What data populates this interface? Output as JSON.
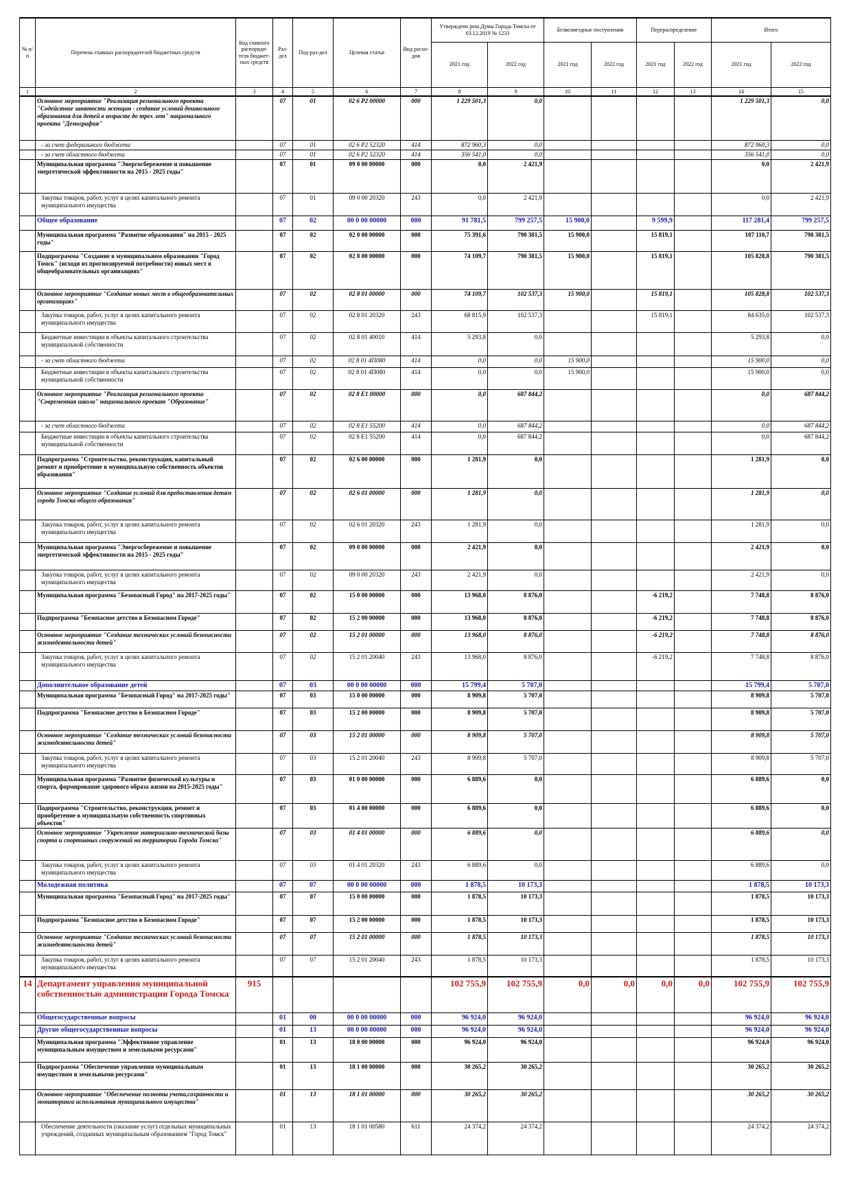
{
  "header": {
    "cells": [
      "№ п/п",
      "Перечень главных распорядителей бюджетных средств",
      "Код главного распоряди-теля бюджет-ных средств",
      "Раз-дел",
      "Под-раз-дел",
      "Целевая статья",
      "Вид расхо-дов",
      "Утверждено реш.Думы Города Томска от 03.12.2019 № 1233",
      "Безвозмездные поступления",
      "Перераспределение",
      "Итого"
    ],
    "years": [
      "2021 год",
      "2022 год",
      "2021 год",
      "2022 год",
      "2021 год",
      "2022 год",
      "2021 год",
      "2022 год"
    ],
    "numbers": [
      1,
      2,
      3,
      4,
      5,
      6,
      7,
      8,
      9,
      10,
      11,
      12,
      13,
      14,
      15
    ]
  },
  "rows": [
    {
      "style": "bi",
      "cells": [
        null,
        "Основное мероприятие \"Реализация регионального проекта \"Содействие занятости женщин - создание условий дошкольного образования для детей в возрасте до трех лет\" национального проекта \"Демография\"",
        null,
        "07",
        "01",
        "02 6 P2 00000",
        "000",
        "1 229 501,3",
        "0,0",
        null,
        null,
        null,
        null,
        "1 229 501,3",
        "0,0"
      ]
    },
    {
      "style": "i",
      "cells": [
        null,
        "- за счет федерального бюджета",
        null,
        "07",
        "01",
        "02 6 P2 52320",
        "414",
        "872 960,3",
        "0,0",
        null,
        null,
        null,
        null,
        "872 960,3",
        "0,0"
      ]
    },
    {
      "style": "i",
      "cells": [
        null,
        "- за счет областного бюджета",
        null,
        "07",
        "01",
        "02 6 P2 52320",
        "414",
        "356 541,0",
        "0,0",
        null,
        null,
        null,
        null,
        "356 541,0",
        "0,0"
      ]
    },
    {
      "style": "b",
      "cells": [
        null,
        "Муниципальная программа \"Энергосбережение и повышение энергетической эффективности на 2015 - 2025 годы\"",
        null,
        "07",
        "01",
        "09 0 00 00000",
        "000",
        "0,0",
        "2 421,9",
        null,
        null,
        null,
        null,
        "0,0",
        "2 421,9"
      ]
    },
    {
      "style": "n",
      "cells": [
        null,
        "Закупка товаров, работ, услуг в целях капитального ремонта муниципального имущества",
        null,
        "07",
        "01",
        "09 0 00 20320",
        "243",
        "0,0",
        "2 421,9",
        null,
        null,
        null,
        null,
        "0,0",
        "2 421,9"
      ]
    },
    {
      "style": "blue",
      "cells": [
        null,
        "Общее образование",
        null,
        "07",
        "02",
        "00 0 00 00000",
        "000",
        "91 781,5",
        "799 257,5",
        "15 900,0",
        null,
        "9 599,9",
        null,
        "117 281,4",
        "799 257,5"
      ]
    },
    {
      "style": "b",
      "cells": [
        null,
        "Муниципальная программа \"Развитие образования\" на 2015 - 2025 годы\"",
        null,
        "07",
        "02",
        "02 0 00 00000",
        "000",
        "75 391,6",
        "790 381,5",
        "15 900,0",
        null,
        "15 819,1",
        null,
        "107 110,7",
        "790 381,5"
      ]
    },
    {
      "style": "b",
      "cells": [
        null,
        "Подпрограмма \"Создание в муниципальном образовании \"Город Томск\" (исходя из прогнозируемой потребности) новых мест в общеобразовательных организациях\"",
        null,
        "07",
        "02",
        "02 8 00 00000",
        "000",
        "74 109,7",
        "790 381,5",
        "15 900,0",
        null,
        "15 819,1",
        null,
        "105 828,8",
        "790 381,5"
      ]
    },
    {
      "style": "bi",
      "cells": [
        null,
        "Основное мероприятие \"Создание новых мест в общеобразовательных организациях\"",
        null,
        "07",
        "02",
        "02 8 01 00000",
        "000",
        "74 109,7",
        "102 537,3",
        "15 900,0",
        null,
        "15 819,1",
        null,
        "105 828,8",
        "102 537,3"
      ]
    },
    {
      "style": "n",
      "cells": [
        null,
        "Закупка товаров, работ, услуг в целях капитального ремонта муниципального имущества",
        null,
        "07",
        "02",
        "02 8 01 20320",
        "243",
        "68 815,9",
        "102 537,3",
        null,
        null,
        "15 819,1",
        null,
        "84 635,0",
        "102 537,3"
      ]
    },
    {
      "style": "n",
      "cells": [
        null,
        "Бюджетные инвестиции в объекты капитального строительства муниципальной собственности",
        null,
        "07",
        "02",
        "02 8 01 40010",
        "414",
        "5 293,8",
        "0,0",
        null,
        null,
        null,
        null,
        "5 293,8",
        "0,0"
      ]
    },
    {
      "style": "i",
      "cells": [
        null,
        "- за счет областного бюджета",
        null,
        "07",
        "02",
        "02 8 01 4П080",
        "414",
        "0,0",
        "0,0",
        "15 900,0",
        null,
        null,
        null,
        "15 900,0",
        "0,0"
      ]
    },
    {
      "style": "n",
      "cells": [
        null,
        "Бюджетные инвестиции в объекты капитального строительства муниципальной собственности",
        null,
        "07",
        "02",
        "02 8 01 4П080",
        "414",
        "0,0",
        "0,0",
        "15 900,0",
        null,
        null,
        null,
        "15 900,0",
        "0,0"
      ]
    },
    {
      "style": "bi",
      "cells": [
        null,
        "Основное мероприятие \"Реализация регионального проекта \"Современная школа\" национального проекат \"Образование\"",
        null,
        "07",
        "02",
        "02 8 E1 00000",
        "000",
        "0,0",
        "687 844,2",
        null,
        null,
        null,
        null,
        "0,0",
        "687 844,2"
      ]
    },
    {
      "style": "i",
      "cells": [
        null,
        "- за счет областного бюджета",
        null,
        "07",
        "02",
        "02 8 E1 55200",
        "414",
        "0,0",
        "687 844,2",
        null,
        null,
        null,
        null,
        "0,0",
        "687 844,2"
      ]
    },
    {
      "style": "n",
      "cells": [
        null,
        "Бюджетные инвестиции в объекты капитального строительства муниципальной собственности",
        null,
        "07",
        "02",
        "02 8 E1 55200",
        "414",
        "0,0",
        "687 844,2",
        null,
        null,
        null,
        null,
        "0,0",
        "687 844,2"
      ]
    },
    {
      "style": "b",
      "cells": [
        null,
        "Подпрограмма \"Строительство, реконструкция, капитальный ремонт и приобретение в муниципальную собственность объектов образования\"",
        null,
        "07",
        "02",
        "02 6 00 00000",
        "000",
        "1 281,9",
        "0,0",
        null,
        null,
        null,
        null,
        "1 281,9",
        "0,0"
      ]
    },
    {
      "style": "bi",
      "cells": [
        null,
        "Основное мероприятие \"Создание условий для предоставления детям города Томска общего образования\"",
        null,
        "07",
        "02",
        "02 6 01 00000",
        "000",
        "1 281,9",
        "0,0",
        null,
        null,
        null,
        null,
        "1 281,9",
        "0,0"
      ]
    },
    {
      "style": "n",
      "cells": [
        null,
        "Закупка товаров, работ, услуг в целях капитального ремонта муниципального имущества",
        null,
        "07",
        "02",
        "02 6 01 20320",
        "243",
        "1 281,9",
        "0,0",
        null,
        null,
        null,
        null,
        "1 281,9",
        "0,0"
      ]
    },
    {
      "style": "b",
      "cells": [
        null,
        "Муниципальная программа \"Энергосбережение и повышение энергетической эффективности на 2015 - 2025 годы\"",
        null,
        "07",
        "02",
        "09 0 00 00000",
        "000",
        "2 421,9",
        "0,0",
        null,
        null,
        null,
        null,
        "2 421,9",
        "0,0"
      ]
    },
    {
      "style": "n",
      "cells": [
        null,
        "Закупка товаров, работ, услуг в целях капитального ремонта муниципального имущества",
        null,
        "07",
        "02",
        "09 0 00 20320",
        "243",
        "2 421,9",
        "0,0",
        null,
        null,
        null,
        null,
        "2 421,9",
        "0,0"
      ]
    },
    {
      "style": "b",
      "cells": [
        null,
        "Муниципальная программа \"Безопасный Город\" на 2017-2025 годы\"",
        null,
        "07",
        "02",
        "15 0 00 00000",
        "000",
        "13 968,0",
        "8 876,0",
        null,
        null,
        "-6 219,2",
        null,
        "7 748,8",
        "8 876,0"
      ]
    },
    {
      "style": "b",
      "cells": [
        null,
        "Подпрограмма \"Безопасное детство в Безопасном Городе\"",
        null,
        "07",
        "02",
        "15 2 00 00000",
        "000",
        "13 968,0",
        "8 876,0",
        null,
        null,
        "-6 219,2",
        null,
        "7 748,8",
        "8 876,0"
      ]
    },
    {
      "style": "bi",
      "cells": [
        null,
        "Основное мероприятие \"Создание технических условий безопасности жизнедеятельности детей\"",
        null,
        "07",
        "02",
        "15 2 01 00000",
        "000",
        "13 968,0",
        "8 876,0",
        null,
        null,
        "-6 219,2",
        null,
        "7 748,8",
        "8 876,0"
      ]
    },
    {
      "style": "n",
      "cells": [
        null,
        "Закупка товаров, работ, услуг в целях капитального ремонта муниципального имущества",
        null,
        "07",
        "02",
        "15 2 01 20040",
        "243",
        "13 968,0",
        "8 876,0",
        null,
        null,
        "-6 219,2",
        null,
        "7 748,8",
        "8 876,0"
      ]
    },
    {
      "style": "blue",
      "cells": [
        null,
        "Дополнительное образование детей",
        null,
        "07",
        "03",
        "00 0 00 00000",
        "000",
        "15 799,4",
        "5 707,0",
        null,
        null,
        null,
        null,
        "15 799,4",
        "5 707,0"
      ]
    },
    {
      "style": "b",
      "cells": [
        null,
        "Муниципальная программа \"Безопасный Город\" на 2017-2025 годы\"",
        null,
        "07",
        "03",
        "15 0 00 00000",
        "000",
        "8 909,8",
        "5 707,0",
        null,
        null,
        null,
        null,
        "8 909,8",
        "5 707,0"
      ]
    },
    {
      "style": "b",
      "cells": [
        null,
        "Подпрограмма \"Безопасное детство в Безопасном Городе\"",
        null,
        "07",
        "03",
        "15 2 00 00000",
        "000",
        "8 909,8",
        "5 707,0",
        null,
        null,
        null,
        null,
        "8 909,8",
        "5 707,0"
      ]
    },
    {
      "style": "bi",
      "cells": [
        null,
        "Основное мероприятие \"Создание технических условий безопасности жизнедеятельности детей\"",
        null,
        "07",
        "03",
        "15 2 01 00000",
        "000",
        "8 909,8",
        "5 707,0",
        null,
        null,
        null,
        null,
        "8 909,8",
        "5 707,0"
      ]
    },
    {
      "style": "n",
      "cells": [
        null,
        "Закупка товаров, работ, услуг в целях капитального ремонта муниципального имущества",
        null,
        "07",
        "03",
        "15 2 01 20040",
        "243",
        "8 909,8",
        "5 707,0",
        null,
        null,
        null,
        null,
        "8 909,8",
        "5 707,0"
      ]
    },
    {
      "style": "b",
      "cells": [
        null,
        "Муниципальная программа \"Развитие физической культуры и спорта, формирование здорового образа жизни на 2015-2025 годы\"",
        null,
        "07",
        "03",
        "01 0 00 00000",
        "000",
        "6 889,6",
        "0,0",
        null,
        null,
        null,
        null,
        "6 889,6",
        "0,0"
      ]
    },
    {
      "style": "b",
      "cells": [
        null,
        "Подпрограмма \"Строительство, реконструкция, ремонт и приобретение в муниципальную собственность спортивных объектов\"",
        null,
        "07",
        "03",
        "01 4 00 00000",
        "000",
        "6 889,6",
        "0,0",
        null,
        null,
        null,
        null,
        "6 889,6",
        "0,0"
      ]
    },
    {
      "style": "bi",
      "cells": [
        null,
        "Основное мероприятие \"Укрепление материально-технической базы спорта и спортивных сооружений на территории Города Томска\"",
        null,
        "07",
        "03",
        "01 4 01 00000",
        "000",
        "6 889,6",
        "0,0",
        null,
        null,
        null,
        null,
        "6 889,6",
        "0,0"
      ]
    },
    {
      "style": "n",
      "cells": [
        null,
        "Закупка товаров, работ, услуг в целях капитального ремонта муниципального имущества",
        null,
        "07",
        "03",
        "01 4 01 20320",
        "243",
        "6 889,6",
        "0,0",
        null,
        null,
        null,
        null,
        "6 889,6",
        "0,0"
      ]
    },
    {
      "style": "blue",
      "cells": [
        null,
        "Молодежная политика",
        null,
        "07",
        "07",
        "00 0 00 00000",
        "000",
        "1 878,5",
        "10 173,3",
        null,
        null,
        null,
        null,
        "1 878,5",
        "10 173,3"
      ]
    },
    {
      "style": "b",
      "cells": [
        null,
        "Муниципальная программа \"Безопасный Город\" на 2017-2025 годы\"",
        null,
        "07",
        "07",
        "15 0 00 00000",
        "000",
        "1 878,5",
        "10 173,3",
        null,
        null,
        null,
        null,
        "1 878,5",
        "10 173,3"
      ]
    },
    {
      "style": "b",
      "cells": [
        null,
        "Подпрограмма \"Безопасное детство в Безопасном Городе\"",
        null,
        "07",
        "07",
        "15 2 00 00000",
        "000",
        "1 878,5",
        "10 173,3",
        null,
        null,
        null,
        null,
        "1 878,5",
        "10 173,3"
      ]
    },
    {
      "style": "bi",
      "cells": [
        null,
        "Основное мероприятие \"Создание технических условий безопасности жизнедеятельности детей\"",
        null,
        "07",
        "07",
        "15 2 01 00000",
        "000",
        "1 878,5",
        "10 173,3",
        null,
        null,
        null,
        null,
        "1 878,5",
        "10 173,3"
      ]
    },
    {
      "style": "n",
      "cells": [
        null,
        "Закупка товаров, работ, услуг в целях капитального ремонта муниципального имущества",
        null,
        "07",
        "07",
        "15 2 01 20040",
        "243",
        "1 878,5",
        "10 173,3",
        null,
        null,
        null,
        null,
        "1 878,5",
        "10 173,3"
      ]
    },
    {
      "style": "red",
      "cells": [
        "14",
        "Департамент управления муниципальной собственностью администрации Города Томска",
        "915",
        null,
        null,
        null,
        null,
        "102 755,9",
        "102 755,9",
        "0,0",
        "0,0",
        "0,0",
        "0,0",
        "102 755,9",
        "102 755,9"
      ]
    },
    {
      "style": "blue",
      "cells": [
        null,
        "Общегосударственные вопросы",
        null,
        "01",
        "00",
        "00 0 00 00000",
        "000",
        "96 924,0",
        "96 924,0",
        null,
        null,
        null,
        null,
        "96 924,0",
        "96 924,0"
      ]
    },
    {
      "style": "blue",
      "cells": [
        null,
        "Другие общегосударственные вопросы",
        null,
        "01",
        "13",
        "00 0 00 00000",
        "000",
        "96 924,0",
        "96 924,0",
        null,
        null,
        null,
        null,
        "96 924,0",
        "96 924,0"
      ]
    },
    {
      "style": "b",
      "cells": [
        null,
        "Муниципальная программа \"Эффективное управление муниципальным имуществом и земельными ресурсами\"",
        null,
        "01",
        "13",
        "18 0 00 00000",
        "000",
        "96 924,0",
        "96 924,0",
        null,
        null,
        null,
        null,
        "96 924,0",
        "96 924,0"
      ]
    },
    {
      "style": "b",
      "cells": [
        null,
        "Подпрограмма \"Обеспечение управления муниципальным имуществом и земельными ресурсами\"",
        null,
        "01",
        "13",
        "18 1 00 00000",
        "000",
        "30 265,2",
        "30 265,2",
        null,
        null,
        null,
        null,
        "30 265,2",
        "30 265,2"
      ]
    },
    {
      "style": "bi",
      "cells": [
        null,
        "Основное мероприятие \"Обеспечение полноты учета,сохранности и мониторинга использования муниципального имущества\"",
        null,
        "01",
        "13",
        "18 1 01 00000",
        "000",
        "30 265,2",
        "30 265,2",
        null,
        null,
        null,
        null,
        "30 265,2",
        "30 265,2"
      ]
    },
    {
      "style": "n",
      "cells": [
        null,
        "Обеспечение деятельности (оказание услуг) отдельных муниципальных учреждений, созданных муниципальным образованием \"Город Томск\"",
        null,
        "01",
        "13",
        "18 1 01 00580",
        "611",
        "24 374,2",
        "24 374,2",
        null,
        null,
        null,
        null,
        "24 374,2",
        "24 374,2"
      ]
    }
  ]
}
